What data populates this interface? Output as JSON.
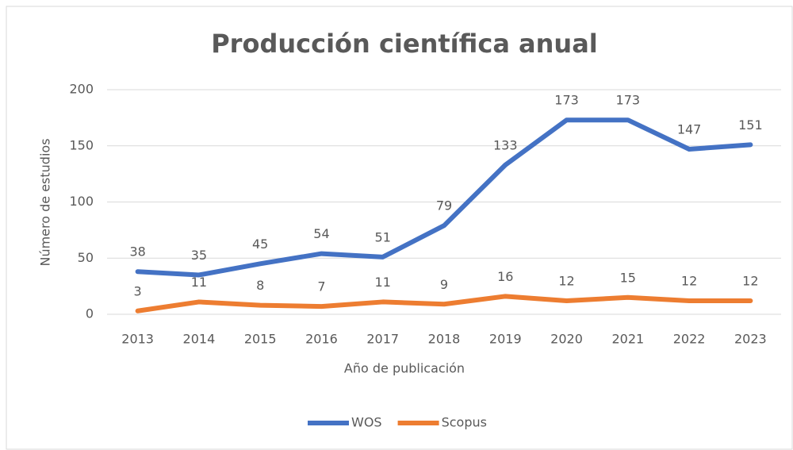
{
  "chart_data": {
    "type": "line",
    "title": "Producción  científica anual",
    "xlabel": "Año de publicación",
    "ylabel": "Número de estudios",
    "categories": [
      "2013",
      "2014",
      "2015",
      "2016",
      "2017",
      "2018",
      "2019",
      "2020",
      "2021",
      "2022",
      "2023"
    ],
    "series": [
      {
        "name": "WOS",
        "color": "#4472c4",
        "values": [
          38,
          35,
          45,
          54,
          51,
          79,
          133,
          173,
          173,
          147,
          151
        ]
      },
      {
        "name": "Scopus",
        "color": "#ed7d31",
        "values": [
          3,
          11,
          8,
          7,
          11,
          9,
          16,
          12,
          15,
          12,
          12
        ]
      }
    ],
    "ylim": [
      0,
      200
    ],
    "yticks": [
      0,
      50,
      100,
      150,
      200
    ],
    "grid": true,
    "legend": "bottom"
  }
}
